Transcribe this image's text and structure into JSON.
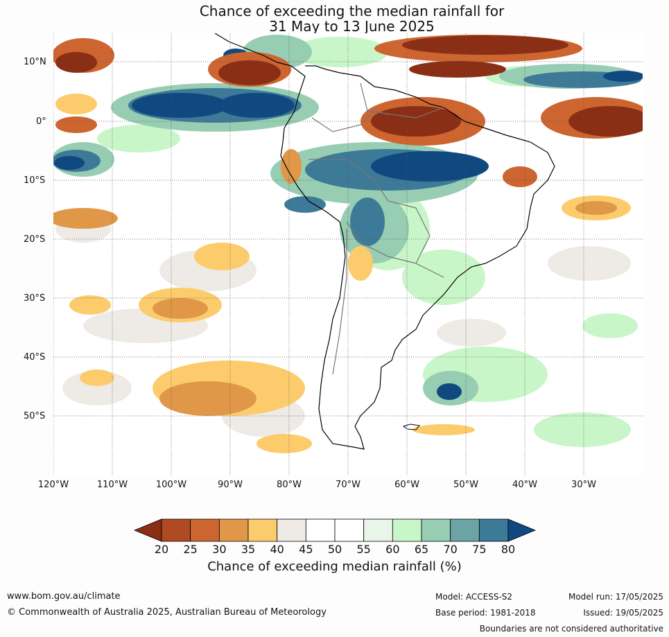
{
  "title_line1": "Chance of exceeding the median rainfall for",
  "title_line2": "31 May to 13 June 2025",
  "lat_labels": [
    "10°N",
    "0°",
    "10°S",
    "20°S",
    "30°S",
    "40°S",
    "50°S"
  ],
  "lon_labels": [
    "120°W",
    "110°W",
    "100°W",
    "90°W",
    "80°W",
    "70°W",
    "60°W",
    "50°W",
    "40°W",
    "30°W"
  ],
  "colorbar": {
    "ticks": [
      "20",
      "25",
      "30",
      "35",
      "40",
      "45",
      "50",
      "55",
      "60",
      "65",
      "70",
      "75",
      "80"
    ],
    "colors": [
      "#8b2e16",
      "#b04a22",
      "#cd6530",
      "#e09748",
      "#fccc6c",
      "#eeebe6",
      "#ffffff",
      "#ffffff",
      "#eaf5ea",
      "#c8f6c8",
      "#97cdb3",
      "#6ca4a5",
      "#3d7a98",
      "#0f4980"
    ],
    "label": "Chance of exceeding median rainfall (%)"
  },
  "footer": {
    "url": "www.bom.gov.au/climate",
    "copyright": "© Commonwealth of Australia 2025, Australian Bureau of Meteorology",
    "model": "Model: ACCESS-S2",
    "model_run": "Model run: 17/05/2025",
    "base_period": "Base period: 1981-2018",
    "issued": "Issued: 19/05/2025",
    "disclaimer": "Boundaries are not considered authoritative"
  }
}
